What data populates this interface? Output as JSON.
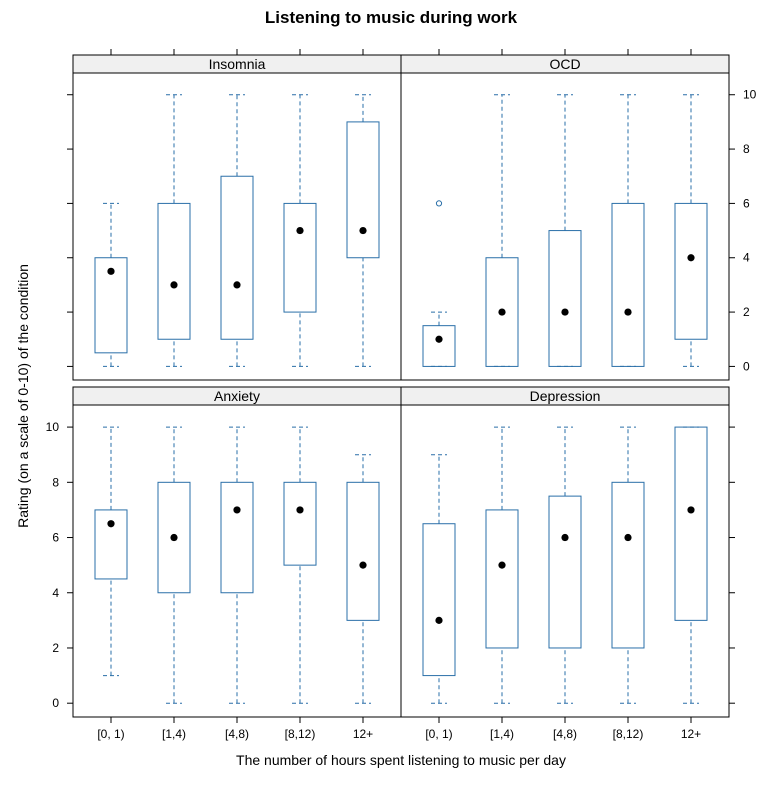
{
  "chart_data": {
    "type": "box",
    "title": "Listening to music during work",
    "xlabel": "The number of hours spent listening to music per day",
    "ylabel": "Rating (on a scale of 0-10) of the condition",
    "categories": [
      "[0, 1)",
      "[1,4)",
      "[4,8)",
      "[8,12)",
      "12+"
    ],
    "ylim": [
      -0.5,
      10.8
    ],
    "yticks": [
      0,
      2,
      4,
      6,
      8,
      10
    ],
    "colors": {
      "box": "#2a6fa8",
      "median_dot": "#000000",
      "strip_bg": "#f0f0f0",
      "frame": "#000000"
    },
    "panels": [
      {
        "name": "Insomnia",
        "boxes": [
          {
            "category": "[0, 1)",
            "lower_whisker": 0,
            "q1": 0.5,
            "median": 3.5,
            "q3": 4,
            "upper_whisker": 6,
            "outliers": []
          },
          {
            "category": "[1,4)",
            "lower_whisker": 0,
            "q1": 1,
            "median": 3,
            "q3": 6,
            "upper_whisker": 10,
            "outliers": []
          },
          {
            "category": "[4,8)",
            "lower_whisker": 0,
            "q1": 1,
            "median": 3,
            "q3": 7,
            "upper_whisker": 10,
            "outliers": []
          },
          {
            "category": "[8,12)",
            "lower_whisker": 0,
            "q1": 2,
            "median": 5,
            "q3": 6,
            "upper_whisker": 10,
            "outliers": []
          },
          {
            "category": "12+",
            "lower_whisker": 0,
            "q1": 4,
            "median": 5,
            "q3": 9,
            "upper_whisker": 10,
            "outliers": []
          }
        ]
      },
      {
        "name": "OCD",
        "boxes": [
          {
            "category": "[0, 1)",
            "lower_whisker": 0,
            "q1": 0,
            "median": 1,
            "q3": 1.5,
            "upper_whisker": 2,
            "outliers": [
              6
            ]
          },
          {
            "category": "[1,4)",
            "lower_whisker": 0,
            "q1": 0,
            "median": 2,
            "q3": 4,
            "upper_whisker": 10,
            "outliers": []
          },
          {
            "category": "[4,8)",
            "lower_whisker": 0,
            "q1": 0,
            "median": 2,
            "q3": 5,
            "upper_whisker": 10,
            "outliers": []
          },
          {
            "category": "[8,12)",
            "lower_whisker": 0,
            "q1": 0,
            "median": 2,
            "q3": 6,
            "upper_whisker": 10,
            "outliers": []
          },
          {
            "category": "12+",
            "lower_whisker": 0,
            "q1": 1,
            "median": 4,
            "q3": 6,
            "upper_whisker": 10,
            "outliers": []
          }
        ]
      },
      {
        "name": "Anxiety",
        "boxes": [
          {
            "category": "[0, 1)",
            "lower_whisker": 1,
            "q1": 4.5,
            "median": 6.5,
            "q3": 7,
            "upper_whisker": 10,
            "outliers": []
          },
          {
            "category": "[1,4)",
            "lower_whisker": 0,
            "q1": 4,
            "median": 6,
            "q3": 8,
            "upper_whisker": 10,
            "outliers": []
          },
          {
            "category": "[4,8)",
            "lower_whisker": 0,
            "q1": 4,
            "median": 7,
            "q3": 8,
            "upper_whisker": 10,
            "outliers": []
          },
          {
            "category": "[8,12)",
            "lower_whisker": 0,
            "q1": 5,
            "median": 7,
            "q3": 8,
            "upper_whisker": 10,
            "outliers": []
          },
          {
            "category": "12+",
            "lower_whisker": 0,
            "q1": 3,
            "median": 5,
            "q3": 8,
            "upper_whisker": 9,
            "outliers": []
          }
        ]
      },
      {
        "name": "Depression",
        "boxes": [
          {
            "category": "[0, 1)",
            "lower_whisker": 0,
            "q1": 1,
            "median": 3,
            "q3": 6.5,
            "upper_whisker": 9,
            "outliers": []
          },
          {
            "category": "[1,4)",
            "lower_whisker": 0,
            "q1": 2,
            "median": 5,
            "q3": 7,
            "upper_whisker": 10,
            "outliers": []
          },
          {
            "category": "[4,8)",
            "lower_whisker": 0,
            "q1": 2,
            "median": 6,
            "q3": 7.5,
            "upper_whisker": 10,
            "outliers": []
          },
          {
            "category": "[8,12)",
            "lower_whisker": 0,
            "q1": 2,
            "median": 6,
            "q3": 8,
            "upper_whisker": 10,
            "outliers": []
          },
          {
            "category": "12+",
            "lower_whisker": 0,
            "q1": 3,
            "median": 7,
            "q3": 10,
            "upper_whisker": 10,
            "outliers": []
          }
        ]
      }
    ]
  }
}
